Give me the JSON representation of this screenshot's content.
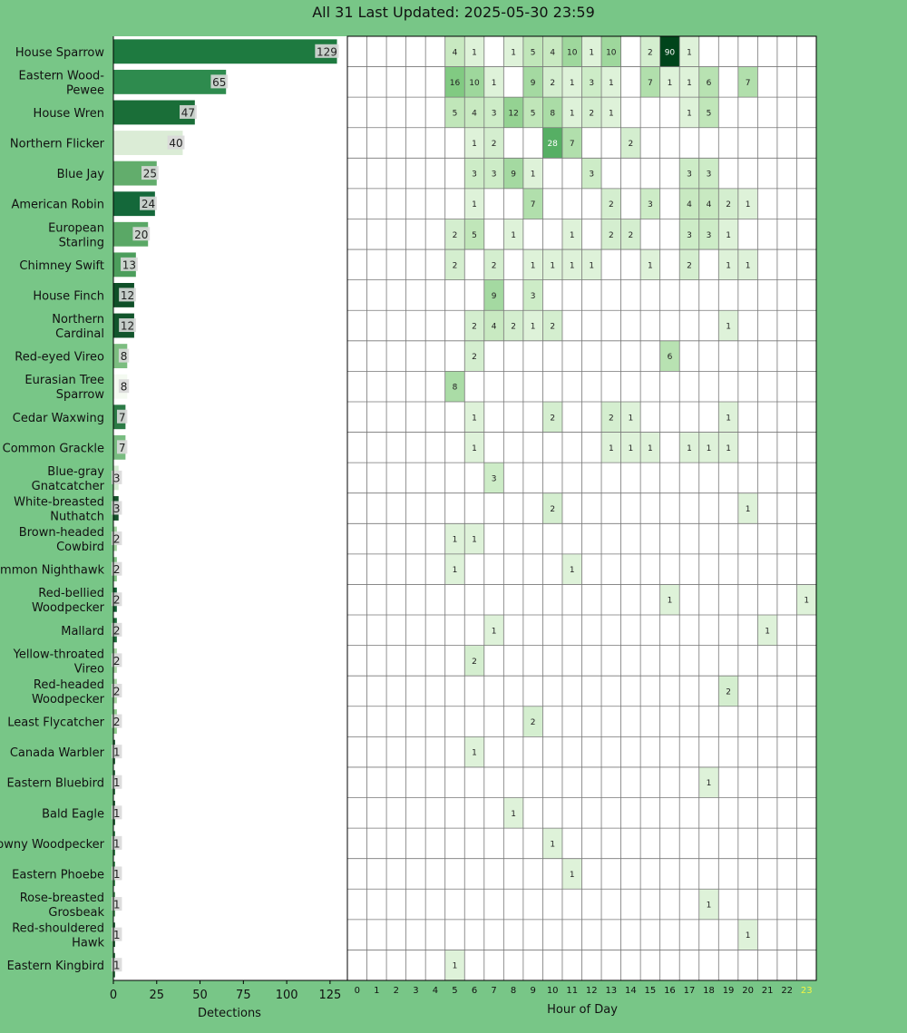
{
  "title": "All 31 Last Updated: 2025-05-30 23:59",
  "chart_data": [
    {
      "type": "bar",
      "orientation": "horizontal",
      "xlabel": "Detections",
      "xlim": [
        0,
        135
      ],
      "xticks": [
        0,
        25,
        50,
        75,
        100,
        125
      ],
      "categories": [
        "House Sparrow",
        "Eastern Wood-Pewee",
        "House Wren",
        "Northern Flicker",
        "Blue Jay",
        "American Robin",
        "European Starling",
        "Chimney Swift",
        "House Finch",
        "Northern Cardinal",
        "Red-eyed Vireo",
        "Eurasian Tree Sparrow",
        "Cedar Waxwing",
        "Common Grackle",
        "Blue-gray Gnatcatcher",
        "White-breasted Nuthatch",
        "Brown-headed Cowbird",
        "Common Nighthawk",
        "Red-bellied Woodpecker",
        "Mallard",
        "Yellow-throated Vireo",
        "Red-headed Woodpecker",
        "Least Flycatcher",
        "Canada Warbler",
        "Eastern Bluebird",
        "Bald Eagle",
        "Downy Woodpecker",
        "Eastern Phoebe",
        "Rose-breasted Grosbeak",
        "Red-shouldered Hawk",
        "Eastern Kingbird"
      ],
      "category_lines": [
        [
          "House Sparrow"
        ],
        [
          "Eastern Wood-",
          "Pewee"
        ],
        [
          "House Wren"
        ],
        [
          "Northern Flicker"
        ],
        [
          "Blue Jay"
        ],
        [
          "American Robin"
        ],
        [
          "European",
          "Starling"
        ],
        [
          "Chimney Swift"
        ],
        [
          "House Finch"
        ],
        [
          "Northern",
          "Cardinal"
        ],
        [
          "Red-eyed Vireo"
        ],
        [
          "Eurasian Tree",
          "Sparrow"
        ],
        [
          "Cedar Waxwing"
        ],
        [
          "Common Grackle"
        ],
        [
          "Blue-gray",
          "Gnatcatcher"
        ],
        [
          "White-breasted",
          "Nuthatch"
        ],
        [
          "Brown-headed",
          "Cowbird"
        ],
        [
          "Common Nighthawk"
        ],
        [
          "Red-bellied",
          "Woodpecker"
        ],
        [
          "Mallard"
        ],
        [
          "Yellow-throated",
          "Vireo"
        ],
        [
          "Red-headed",
          "Woodpecker"
        ],
        [
          "Least Flycatcher"
        ],
        [
          "Canada Warbler"
        ],
        [
          "Eastern Bluebird"
        ],
        [
          "Bald Eagle"
        ],
        [
          "Downy Woodpecker"
        ],
        [
          "Eastern Phoebe"
        ],
        [
          "Rose-breasted",
          "Grosbeak"
        ],
        [
          "Red-shouldered",
          "Hawk"
        ],
        [
          "Eastern Kingbird"
        ]
      ],
      "values": [
        129,
        65,
        47,
        40,
        25,
        24,
        20,
        13,
        12,
        12,
        8,
        8,
        7,
        7,
        3,
        3,
        2,
        2,
        2,
        2,
        2,
        2,
        2,
        1,
        1,
        1,
        1,
        1,
        1,
        1,
        1
      ],
      "bar_colors": [
        "#1e7a40",
        "#2e8b4e",
        "#1a6e38",
        "#dbecd6",
        "#62ad6c",
        "#14683a",
        "#5aa866",
        "#4c9e5c",
        "#0f4f28",
        "#12552c",
        "#7cbd80",
        "#f4faf1",
        "#2b7a45",
        "#78bc80",
        "#d3ead0",
        "#16502b",
        "#9fd09d",
        "#7fc083",
        "#145e34",
        "#1e6b3a",
        "#a8d3a3",
        "#a3d19f",
        "#8cc98a",
        "#1f5c35",
        "#2a6a40",
        "#1a5a30",
        "#2d7a45",
        "#3a8a50",
        "#4b8f5a",
        "#1c5a32",
        "#2b6b40"
      ],
      "grid": false
    },
    {
      "type": "heatmap",
      "xlabel": "Hour of Day",
      "x": [
        "0",
        "1",
        "2",
        "3",
        "4",
        "5",
        "6",
        "7",
        "8",
        "9",
        "10",
        "11",
        "12",
        "13",
        "14",
        "15",
        "16",
        "17",
        "18",
        "19",
        "20",
        "21",
        "22",
        "23"
      ],
      "highlight_x": "23",
      "highlight_color": "#f2f542",
      "cells": [
        [
          [
            5,
            4
          ],
          [
            6,
            1
          ],
          [
            8,
            1
          ],
          [
            9,
            5
          ],
          [
            10,
            4
          ],
          [
            11,
            10
          ],
          [
            12,
            1
          ],
          [
            13,
            10
          ],
          [
            15,
            2
          ],
          [
            16,
            90
          ],
          [
            17,
            1
          ]
        ],
        [
          [
            5,
            16
          ],
          [
            6,
            10
          ],
          [
            7,
            1
          ],
          [
            9,
            9
          ],
          [
            10,
            2
          ],
          [
            11,
            1
          ],
          [
            12,
            3
          ],
          [
            13,
            1
          ],
          [
            15,
            7
          ],
          [
            16,
            1
          ],
          [
            17,
            1
          ],
          [
            18,
            6
          ],
          [
            20,
            7
          ]
        ],
        [
          [
            5,
            5
          ],
          [
            6,
            4
          ],
          [
            7,
            3
          ],
          [
            8,
            12
          ],
          [
            9,
            5
          ],
          [
            10,
            8
          ],
          [
            11,
            1
          ],
          [
            12,
            2
          ],
          [
            13,
            1
          ],
          [
            17,
            1
          ],
          [
            18,
            5
          ]
        ],
        [
          [
            6,
            1
          ],
          [
            7,
            2
          ],
          [
            10,
            28
          ],
          [
            11,
            7
          ],
          [
            14,
            2
          ]
        ],
        [
          [
            6,
            3
          ],
          [
            7,
            3
          ],
          [
            8,
            9
          ],
          [
            9,
            1
          ],
          [
            12,
            3
          ],
          [
            17,
            3
          ],
          [
            18,
            3
          ]
        ],
        [
          [
            6,
            1
          ],
          [
            9,
            7
          ],
          [
            13,
            2
          ],
          [
            15,
            3
          ],
          [
            17,
            4
          ],
          [
            18,
            4
          ],
          [
            19,
            2
          ],
          [
            20,
            1
          ]
        ],
        [
          [
            5,
            2
          ],
          [
            6,
            5
          ],
          [
            8,
            1
          ],
          [
            11,
            1
          ],
          [
            13,
            2
          ],
          [
            14,
            2
          ],
          [
            17,
            3
          ],
          [
            18,
            3
          ],
          [
            19,
            1
          ]
        ],
        [
          [
            5,
            2
          ],
          [
            7,
            2
          ],
          [
            9,
            1
          ],
          [
            10,
            1
          ],
          [
            11,
            1
          ],
          [
            12,
            1
          ],
          [
            15,
            1
          ],
          [
            17,
            2
          ],
          [
            19,
            1
          ],
          [
            20,
            1
          ]
        ],
        [
          [
            7,
            9
          ],
          [
            9,
            3
          ]
        ],
        [
          [
            6,
            2
          ],
          [
            7,
            4
          ],
          [
            8,
            2
          ],
          [
            9,
            1
          ],
          [
            10,
            2
          ],
          [
            19,
            1
          ]
        ],
        [
          [
            6,
            2
          ],
          [
            16,
            6
          ]
        ],
        [
          [
            5,
            8
          ]
        ],
        [
          [
            6,
            1
          ],
          [
            10,
            2
          ],
          [
            13,
            2
          ],
          [
            14,
            1
          ],
          [
            19,
            1
          ]
        ],
        [
          [
            6,
            1
          ],
          [
            13,
            1
          ],
          [
            14,
            1
          ],
          [
            15,
            1
          ],
          [
            17,
            1
          ],
          [
            18,
            1
          ],
          [
            19,
            1
          ]
        ],
        [
          [
            7,
            3
          ]
        ],
        [
          [
            10,
            2
          ],
          [
            20,
            1
          ]
        ],
        [
          [
            5,
            1
          ],
          [
            6,
            1
          ]
        ],
        [
          [
            5,
            1
          ],
          [
            11,
            1
          ]
        ],
        [
          [
            16,
            1
          ],
          [
            23,
            1
          ]
        ],
        [
          [
            7,
            1
          ],
          [
            21,
            1
          ]
        ],
        [
          [
            6,
            2
          ]
        ],
        [
          [
            19,
            2
          ]
        ],
        [
          [
            9,
            2
          ]
        ],
        [
          [
            6,
            1
          ]
        ],
        [
          [
            18,
            1
          ]
        ],
        [
          [
            8,
            1
          ]
        ],
        [
          [
            10,
            1
          ]
        ],
        [
          [
            11,
            1
          ]
        ],
        [
          [
            18,
            1
          ]
        ],
        [
          [
            20,
            1
          ]
        ],
        [
          [
            5,
            1
          ]
        ]
      ],
      "colorscale": [
        "#f7fcf5",
        "#00441b"
      ],
      "grid": true
    }
  ]
}
